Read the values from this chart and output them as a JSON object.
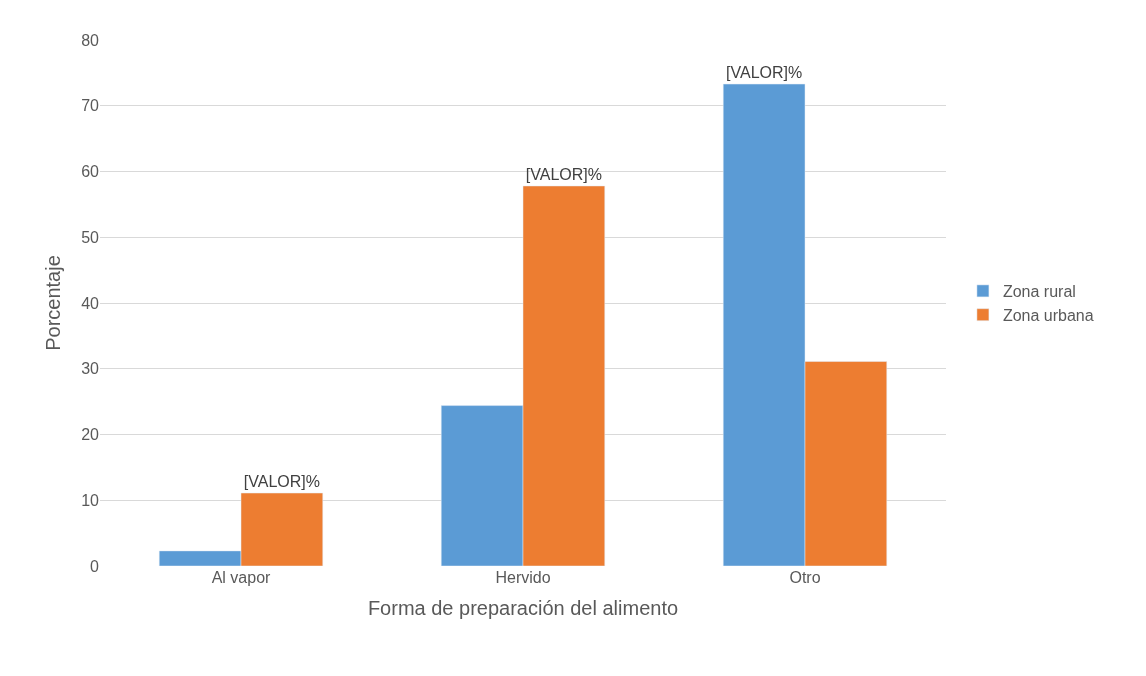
{
  "chart_data": {
    "type": "bar",
    "xlabel": "Forma de preparación del alimento",
    "ylabel": "Porcentaje",
    "categories": [
      "Al vapor",
      "Hervido",
      "Otro"
    ],
    "series": [
      {
        "name": "Zona rural",
        "color": "#5b9bd5",
        "values": [
          2.3,
          24.4,
          73.3
        ],
        "value_labels": [
          null,
          null,
          "[VALOR]%"
        ]
      },
      {
        "name": "Zona urbana",
        "color": "#ed7d31",
        "values": [
          11.1,
          57.8,
          31.1
        ],
        "value_labels": [
          "[VALOR]%",
          "[VALOR]%",
          null
        ]
      }
    ],
    "ylim": [
      0,
      80
    ],
    "yticks": [
      0,
      10,
      20,
      30,
      40,
      50,
      60,
      70,
      80
    ],
    "grid": "y",
    "legend": "right"
  }
}
